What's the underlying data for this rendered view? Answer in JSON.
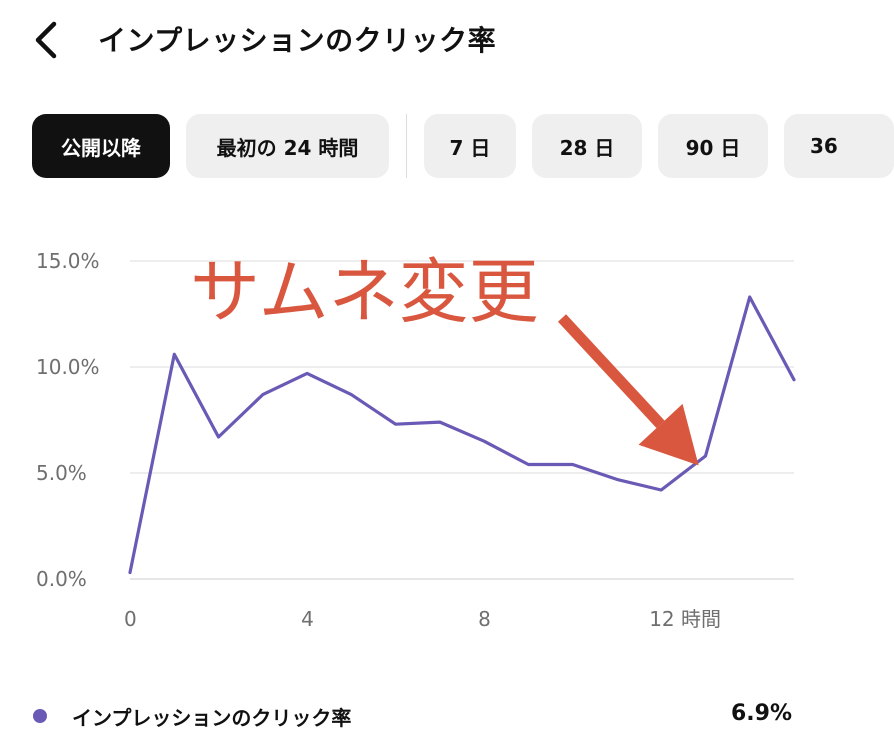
{
  "header": {
    "back_icon": "chevron-left-icon",
    "title": "インプレッションのクリック率"
  },
  "filters": {
    "chips": [
      {
        "label": "公開以降",
        "active": true
      },
      {
        "label": "最初の 24 時間",
        "active": false
      },
      {
        "label": "7 日",
        "active": false
      },
      {
        "label": "28 日",
        "active": false
      },
      {
        "label": "90 日",
        "active": false
      },
      {
        "label": "36",
        "active": false
      }
    ]
  },
  "chart_data": {
    "type": "line",
    "title": "",
    "xlabel": "",
    "ylabel": "",
    "x_ticks": [
      {
        "x": 0,
        "label": "0"
      },
      {
        "x": 4,
        "label": "4"
      },
      {
        "x": 8,
        "label": "8"
      },
      {
        "x": 12,
        "label": "12 時間"
      }
    ],
    "y_ticks": [
      {
        "y": 0,
        "label": "0.0%"
      },
      {
        "y": 5,
        "label": "5.0%"
      },
      {
        "y": 10,
        "label": "10.0%"
      },
      {
        "y": 15,
        "label": "15.0%"
      }
    ],
    "xlim": [
      0,
      15
    ],
    "ylim": [
      0,
      15
    ],
    "grid": true,
    "series": [
      {
        "name": "インプレッションのクリック率",
        "color": "#6a59b5",
        "x": [
          0,
          1,
          2,
          3,
          4,
          5,
          6,
          7,
          8,
          9,
          10,
          11,
          12,
          13,
          14,
          15
        ],
        "y": [
          0.3,
          10.6,
          6.7,
          8.7,
          9.7,
          8.7,
          7.3,
          7.4,
          6.5,
          5.4,
          5.4,
          4.7,
          4.2,
          5.8,
          13.3,
          9.4
        ]
      }
    ],
    "annotation": {
      "text": "サムネ変更",
      "color": "#d9573f",
      "arrow_to": {
        "x": 12.8,
        "y": 5.5
      }
    }
  },
  "legend": {
    "label": "インプレッションのクリック率",
    "value": "6.9%",
    "dot_color": "#6a59b5"
  }
}
